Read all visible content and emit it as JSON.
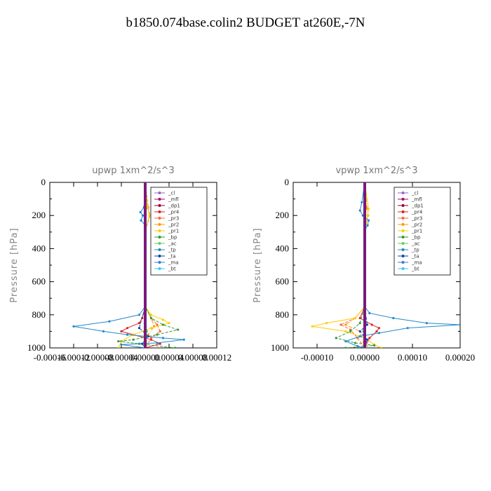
{
  "page": {
    "title": "b1850.074base.colin2  BUDGET at260E,-7N"
  },
  "chart_data": [
    {
      "type": "line",
      "title": "upwp   1xm^2/s^3",
      "ylabel": "Pressure [hPa]",
      "xlim": [
        -0.00016,
        0.00012
      ],
      "ylim": [
        1000,
        0
      ],
      "x_tick_labels": [
        "-0.00016",
        "-0.00012",
        "-0.00008",
        "-0.00004",
        "0.00000",
        "0.00004",
        "0.00008",
        "0.00012"
      ],
      "y_tick_labels": [
        "0",
        "200",
        "400",
        "600",
        "800",
        "1000"
      ],
      "legend_position": "top-right",
      "series": [
        {
          "name": "_cl",
          "color": "#9966cc",
          "points": [
            [
              0,
              0
            ],
            [
              0,
              200
            ],
            [
              0,
              400
            ],
            [
              0,
              600
            ],
            [
              0,
              800
            ],
            [
              0,
              900
            ],
            [
              0,
              1000
            ]
          ]
        },
        {
          "name": "_mfl",
          "color": "#b0006a",
          "points": [
            [
              0,
              0
            ],
            [
              0,
              200
            ],
            [
              0,
              400
            ],
            [
              0,
              600
            ],
            [
              0,
              800
            ],
            [
              0,
              900
            ],
            [
              0,
              1000
            ]
          ]
        },
        {
          "name": "_dp1",
          "color": "#990033",
          "points": [
            [
              0,
              0
            ],
            [
              0,
              200
            ],
            [
              0,
              400
            ],
            [
              0,
              600
            ],
            [
              0,
              800
            ],
            [
              0,
              900
            ],
            [
              0,
              1000
            ]
          ]
        },
        {
          "name": "_pr4",
          "color": "#dd2222",
          "points": [
            [
              0,
              0
            ],
            [
              0,
              150
            ],
            [
              0,
              300
            ],
            [
              0,
              750
            ],
            [
              -5e-06,
              820
            ],
            [
              -1e-05,
              850
            ],
            [
              -3e-05,
              880
            ],
            [
              -4e-05,
              900
            ],
            [
              -2e-05,
              920
            ],
            [
              1e-05,
              950
            ],
            [
              2.5e-05,
              975
            ],
            [
              0,
              1000
            ]
          ]
        },
        {
          "name": "_pr3",
          "color": "#ff6633",
          "points": [
            [
              0,
              0
            ],
            [
              5e-06,
              150
            ],
            [
              8e-06,
              200
            ],
            [
              0,
              300
            ],
            [
              0,
              750
            ],
            [
              1e-05,
              820
            ],
            [
              2e-05,
              860
            ],
            [
              2.5e-05,
              900
            ],
            [
              1e-05,
              940
            ],
            [
              0,
              1000
            ]
          ]
        },
        {
          "name": "_pr2",
          "color": "#ff9900",
          "points": [
            [
              0,
              0
            ],
            [
              3e-06,
              150
            ],
            [
              0,
              300
            ],
            [
              0,
              750
            ],
            [
              1e-05,
              820
            ],
            [
              1.5e-05,
              870
            ],
            [
              5e-06,
              920
            ],
            [
              0,
              1000
            ]
          ]
        },
        {
          "name": "_pr1",
          "color": "#ffcc00",
          "points": [
            [
              0,
              0
            ],
            [
              4e-06,
              150
            ],
            [
              7e-06,
              200
            ],
            [
              0,
              300
            ],
            [
              0,
              750
            ],
            [
              1e-05,
              800
            ],
            [
              3e-05,
              830
            ],
            [
              4e-05,
              850
            ],
            [
              1e-05,
              880
            ],
            [
              -2e-05,
              920
            ],
            [
              -4e-05,
              960
            ],
            [
              -4.5e-05,
              1000
            ]
          ]
        },
        {
          "name": "_bp",
          "color": "#339933",
          "points": [
            [
              0,
              0
            ],
            [
              0,
              750
            ],
            [
              1e-05,
              820
            ],
            [
              3e-05,
              860
            ],
            [
              5.5e-05,
              890
            ],
            [
              2e-05,
              920
            ],
            [
              -2e-05,
              950
            ],
            [
              -4.5e-05,
              960
            ],
            [
              -1e-05,
              975
            ],
            [
              5e-05,
              1000
            ]
          ]
        },
        {
          "name": "_ac",
          "color": "#66cc66",
          "points": [
            [
              0,
              0
            ],
            [
              0,
              800
            ],
            [
              3e-06,
              900
            ],
            [
              0,
              1000
            ]
          ]
        },
        {
          "name": "_tp",
          "color": "#2288cc",
          "points": [
            [
              0,
              0
            ],
            [
              -2e-06,
              150
            ],
            [
              -8e-06,
              180
            ],
            [
              -4e-06,
              200
            ],
            [
              -7e-06,
              230
            ],
            [
              0,
              260
            ],
            [
              0,
              750
            ],
            [
              -1e-05,
              800
            ],
            [
              -6e-05,
              840
            ],
            [
              -0.00012,
              870
            ],
            [
              -7e-05,
              900
            ],
            [
              -3e-05,
              920
            ],
            [
              3e-05,
              940
            ],
            [
              6.5e-05,
              950
            ],
            [
              2e-05,
              970
            ],
            [
              -4e-05,
              980
            ],
            [
              0,
              1000
            ]
          ]
        },
        {
          "name": "_ta",
          "color": "#1144aa",
          "points": [
            [
              0,
              0
            ],
            [
              0,
              750
            ],
            [
              -1e-05,
              880
            ],
            [
              5e-06,
              930
            ],
            [
              -5e-06,
              975
            ],
            [
              0,
              1000
            ]
          ]
        },
        {
          "name": "_ma",
          "color": "#4477cc",
          "points": [
            [
              0,
              0
            ],
            [
              0,
              1000
            ]
          ]
        },
        {
          "name": "_bt",
          "color": "#33ccee",
          "points": [
            [
              0,
              0
            ],
            [
              0,
              1000
            ]
          ]
        }
      ]
    },
    {
      "type": "line",
      "title": "vpwp   1xm^2/s^3",
      "ylabel": "Pressure [hPa]",
      "xlim": [
        -0.00015,
        0.0002
      ],
      "ylim": [
        1000,
        0
      ],
      "x_tick_labels": [
        "-0.00010",
        "0.00000",
        "0.00010",
        "0.00020"
      ],
      "y_tick_labels": [
        "0",
        "200",
        "400",
        "600",
        "800",
        "1000"
      ],
      "legend_position": "top-right",
      "series": [
        {
          "name": "_cl",
          "color": "#9966cc",
          "points": [
            [
              0,
              0
            ],
            [
              0,
              200
            ],
            [
              0,
              400
            ],
            [
              0,
              600
            ],
            [
              0,
              800
            ],
            [
              0,
              900
            ],
            [
              0,
              1000
            ]
          ]
        },
        {
          "name": "_mfl",
          "color": "#b0006a",
          "points": [
            [
              0,
              0
            ],
            [
              0,
              200
            ],
            [
              0,
              400
            ],
            [
              0,
              600
            ],
            [
              0,
              800
            ],
            [
              0,
              900
            ],
            [
              0,
              1000
            ]
          ]
        },
        {
          "name": "_dp1",
          "color": "#990033",
          "points": [
            [
              0,
              0
            ],
            [
              0,
              200
            ],
            [
              0,
              400
            ],
            [
              0,
              600
            ],
            [
              0,
              800
            ],
            [
              0,
              900
            ],
            [
              0,
              1000
            ]
          ]
        },
        {
          "name": "_pr4",
          "color": "#dd2222",
          "points": [
            [
              0,
              0
            ],
            [
              0,
              750
            ],
            [
              -1e-05,
              820
            ],
            [
              1.5e-05,
              860
            ],
            [
              3e-05,
              880
            ],
            [
              2.5e-05,
              900
            ],
            [
              1e-05,
              940
            ],
            [
              0,
              1000
            ]
          ]
        },
        {
          "name": "_pr3",
          "color": "#ff6633",
          "points": [
            [
              0,
              0
            ],
            [
              3e-06,
              150
            ],
            [
              0,
              300
            ],
            [
              0,
              750
            ],
            [
              -2e-05,
              820
            ],
            [
              -5e-05,
              860
            ],
            [
              -3e-05,
              890
            ],
            [
              -1.5e-05,
              940
            ],
            [
              0,
              1000
            ]
          ]
        },
        {
          "name": "_pr2",
          "color": "#ff9900",
          "points": [
            [
              0,
              0
            ],
            [
              5e-06,
              160
            ],
            [
              7e-06,
              200
            ],
            [
              0,
              300
            ],
            [
              0,
              750
            ],
            [
              -2e-05,
              820
            ],
            [
              -4e-05,
              860
            ],
            [
              -1e-05,
              900
            ],
            [
              0,
              1000
            ]
          ]
        },
        {
          "name": "_pr1",
          "color": "#ffcc00",
          "points": [
            [
              0,
              0
            ],
            [
              8e-06,
              160
            ],
            [
              6e-06,
              200
            ],
            [
              0,
              300
            ],
            [
              0,
              750
            ],
            [
              -2e-05,
              820
            ],
            [
              -8e-05,
              850
            ],
            [
              -0.00011,
              870
            ],
            [
              -4e-05,
              900
            ],
            [
              0,
              940
            ],
            [
              2e-05,
              980
            ],
            [
              3.5e-05,
              1000
            ]
          ]
        },
        {
          "name": "_bp",
          "color": "#339933",
          "points": [
            [
              0,
              0
            ],
            [
              0,
              750
            ],
            [
              -1e-05,
              850
            ],
            [
              -3e-05,
              900
            ],
            [
              -6e-05,
              940
            ],
            [
              -2e-05,
              970
            ],
            [
              2e-05,
              985
            ],
            [
              -4e-05,
              1000
            ]
          ]
        },
        {
          "name": "_ac",
          "color": "#66cc66",
          "points": [
            [
              0,
              0
            ],
            [
              0,
              800
            ],
            [
              -3e-06,
              900
            ],
            [
              0,
              1000
            ]
          ]
        },
        {
          "name": "_tp",
          "color": "#2288cc",
          "points": [
            [
              0,
              0
            ],
            [
              -6e-06,
              120
            ],
            [
              -1e-05,
              170
            ],
            [
              -4e-06,
              200
            ],
            [
              8e-06,
              230
            ],
            [
              6e-06,
              260
            ],
            [
              0,
              290
            ],
            [
              0,
              750
            ],
            [
              1e-05,
              790
            ],
            [
              6e-05,
              820
            ],
            [
              0.00013,
              850
            ],
            [
              0.0002,
              860
            ],
            [
              9e-05,
              880
            ],
            [
              3e-05,
              910
            ],
            [
              -1e-05,
              930
            ],
            [
              -4e-05,
              960
            ],
            [
              -1.5e-05,
              990
            ],
            [
              0,
              1000
            ]
          ]
        },
        {
          "name": "_ta",
          "color": "#1144aa",
          "points": [
            [
              0,
              0
            ],
            [
              0,
              750
            ],
            [
              5e-06,
              860
            ],
            [
              -1e-05,
              900
            ],
            [
              5e-06,
              950
            ],
            [
              0,
              1000
            ]
          ]
        },
        {
          "name": "_ma",
          "color": "#4477cc",
          "points": [
            [
              0,
              0
            ],
            [
              0,
              1000
            ]
          ]
        },
        {
          "name": "_bt",
          "color": "#33ccee",
          "points": [
            [
              0,
              0
            ],
            [
              0,
              1000
            ]
          ]
        }
      ]
    }
  ]
}
